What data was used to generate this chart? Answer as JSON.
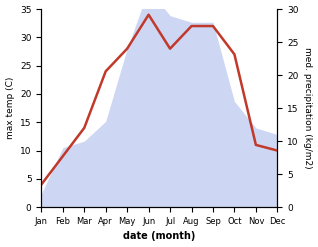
{
  "months": [
    "Jan",
    "Feb",
    "Mar",
    "Apr",
    "May",
    "Jun",
    "Jul",
    "Aug",
    "Sep",
    "Oct",
    "Nov",
    "Dec"
  ],
  "temperature": [
    4,
    9,
    14,
    24,
    28,
    34,
    28,
    32,
    32,
    27,
    11,
    10
  ],
  "precipitation": [
    2,
    9,
    10,
    13,
    24,
    33,
    29,
    28,
    28,
    16,
    12,
    11
  ],
  "temp_color": "#c0392b",
  "precip_fill": "#c5cff0",
  "precip_fill_alpha": 0.85,
  "xlabel": "date (month)",
  "ylabel_left": "max temp (C)",
  "ylabel_right": "med. precipitation (kg/m2)",
  "ylim_left": [
    0,
    35
  ],
  "ylim_right": [
    0,
    30
  ],
  "yticks_left": [
    0,
    5,
    10,
    15,
    20,
    25,
    30,
    35
  ],
  "yticks_right": [
    0,
    5,
    10,
    15,
    20,
    25,
    30
  ],
  "background_color": "#ffffff",
  "line_width": 1.8
}
